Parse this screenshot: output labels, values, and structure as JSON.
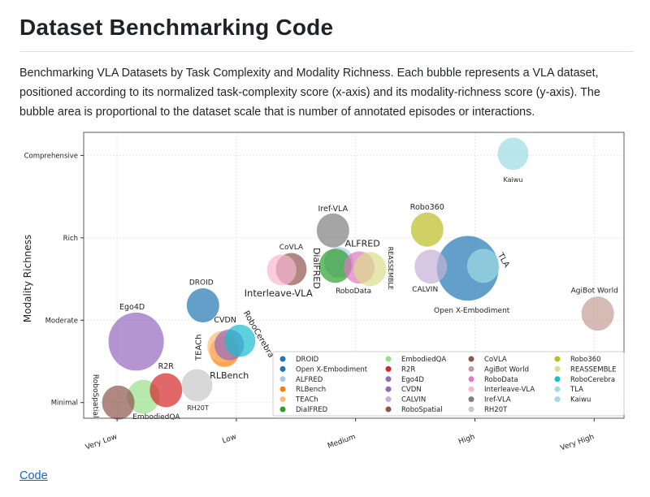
{
  "page": {
    "title": "Dataset Benchmarking Code",
    "description": "Benchmarking VLA Datasets by Task Complexity and Modality Richness. Each bubble represents a VLA dataset, positioned according to its normalized task-complexity score (x-axis) and its modality-richness score (y-axis). The bubble area is proportional to the dataset scale that is number of annotated episodes or interactions.",
    "code_link": "Code"
  },
  "chart_data": {
    "type": "scatter",
    "title": "",
    "xlabel": "",
    "ylabel": "Modality Richness",
    "x_ticks": [
      "Very Low",
      "Low",
      "Medium",
      "High",
      "Very High"
    ],
    "y_ticks": [
      "Minimal",
      "Moderate",
      "Rich",
      "Comprehensive"
    ],
    "xlim": [
      0.72,
      5.25
    ],
    "ylim": [
      0.81,
      4.28
    ],
    "grid": true,
    "legend_placement": "lower-right",
    "bubble_alpha": 0.7,
    "points": [
      {
        "name": "DROID",
        "x": 1.72,
        "y": 2.18,
        "size": 4.0,
        "color": "#1f77b4"
      },
      {
        "name": "Open X-Embodiment",
        "x": 3.94,
        "y": 2.63,
        "size": 14.4,
        "color": "#1f77b4"
      },
      {
        "name": "ALFRED",
        "x": 2.86,
        "y": 2.7,
        "size": 3.3,
        "color": "#aec7e8"
      },
      {
        "name": "RLBench",
        "x": 1.9,
        "y": 1.62,
        "size": 3.3,
        "color": "#ff7f0e"
      },
      {
        "name": "TEACh",
        "x": 1.88,
        "y": 1.68,
        "size": 3.3,
        "color": "#ffbb78"
      },
      {
        "name": "DialFRED",
        "x": 2.83,
        "y": 2.66,
        "size": 4.0,
        "color": "#2ca02c"
      },
      {
        "name": "EmbodiedQA",
        "x": 1.22,
        "y": 1.07,
        "size": 4.0,
        "color": "#98df8a"
      },
      {
        "name": "R2R",
        "x": 1.41,
        "y": 1.15,
        "size": 4.0,
        "color": "#d62728"
      },
      {
        "name": "Ego4D",
        "x": 1.16,
        "y": 1.74,
        "size": 11.6,
        "color": "#9467bd"
      },
      {
        "name": "CVDN",
        "x": 1.94,
        "y": 1.7,
        "size": 3.3,
        "color": "#9467bd"
      },
      {
        "name": "CALVIN",
        "x": 3.63,
        "y": 2.65,
        "size": 4.0,
        "color": "#c5b0d5"
      },
      {
        "name": "RoboSpatial",
        "x": 1.01,
        "y": 1.0,
        "size": 4.0,
        "color": "#8c564b"
      },
      {
        "name": "CoVLA",
        "x": 2.46,
        "y": 2.62,
        "size": 3.6,
        "color": "#8c564b"
      },
      {
        "name": "AgiBot World",
        "x": 5.03,
        "y": 2.08,
        "size": 4.0,
        "color": "#c49c94"
      },
      {
        "name": "RoboData",
        "x": 3.03,
        "y": 2.64,
        "size": 3.6,
        "color": "#e377c2"
      },
      {
        "name": "Interleave-VLA",
        "x": 2.38,
        "y": 2.61,
        "size": 3.3,
        "color": "#f7b6d2"
      },
      {
        "name": "Iref-VLA",
        "x": 2.81,
        "y": 3.09,
        "size": 4.0,
        "color": "#7f7f7f"
      },
      {
        "name": "RH20T",
        "x": 1.67,
        "y": 1.21,
        "size": 3.6,
        "color": "#c7c7c7"
      },
      {
        "name": "Robo360",
        "x": 3.6,
        "y": 3.1,
        "size": 4.0,
        "color": "#bcbd22"
      },
      {
        "name": "REASSEMBLE",
        "x": 3.12,
        "y": 2.62,
        "size": 4.0,
        "color": "#dbdb8d"
      },
      {
        "name": "RoboCerebra",
        "x": 2.03,
        "y": 1.75,
        "size": 3.6,
        "color": "#17becf"
      },
      {
        "name": "TLA",
        "x": 4.07,
        "y": 2.66,
        "size": 4.0,
        "color": "#9edae5"
      },
      {
        "name": "Kaiwu",
        "x": 4.32,
        "y": 4.02,
        "size": 3.6,
        "color": "#9edae5"
      }
    ]
  }
}
